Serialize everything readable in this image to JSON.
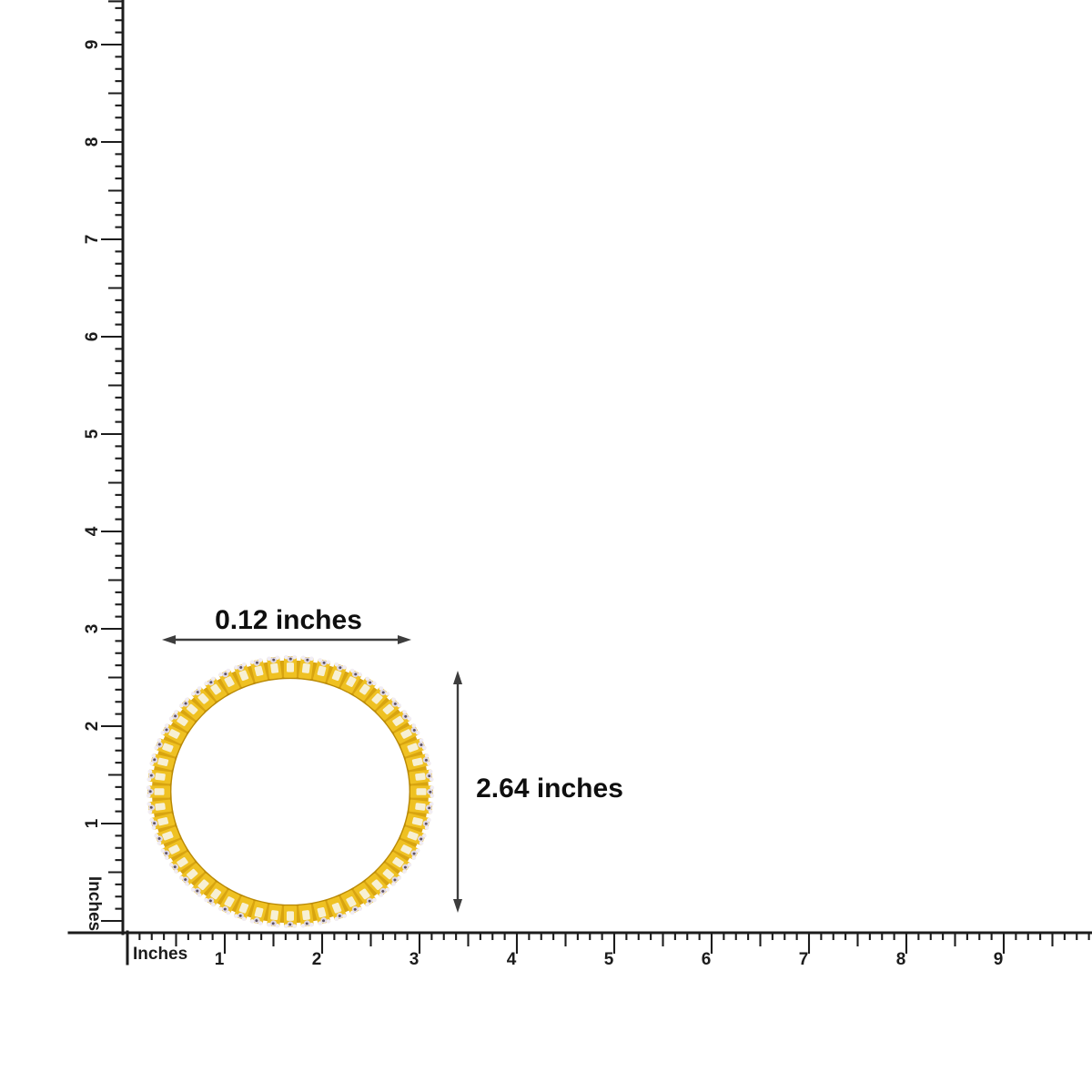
{
  "scene": {
    "background": "#ffffff",
    "description": "bangle-size-guide"
  },
  "rulers": {
    "vertical": {
      "unit_label": "Inches",
      "numbers": [
        "1",
        "2",
        "3",
        "4",
        "5",
        "6",
        "7",
        "8",
        "9"
      ]
    },
    "horizontal": {
      "unit_label": "Inches",
      "numbers": [
        "1",
        "2",
        "3",
        "4",
        "5",
        "6",
        "7",
        "8",
        "9"
      ]
    }
  },
  "annotations": {
    "width": {
      "label": "0.12 inches"
    },
    "height": {
      "label": "2.64 inches"
    }
  },
  "product": {
    "type": "diamond-studded-gold-bangle",
    "segments": 52,
    "colors": {
      "gold_link": "#EFC122",
      "gold_base": "#D8A410",
      "gold_dark": "#BA8A06",
      "slot": "#F7F0D4",
      "prong": "#F1EDF4",
      "stone": "#DFD8E4",
      "stone_speck": "#5C5161"
    }
  },
  "ink": {
    "ruler": "#1c1c1c",
    "arrow": "#3d3d3d",
    "label": "#0f0f0f"
  }
}
